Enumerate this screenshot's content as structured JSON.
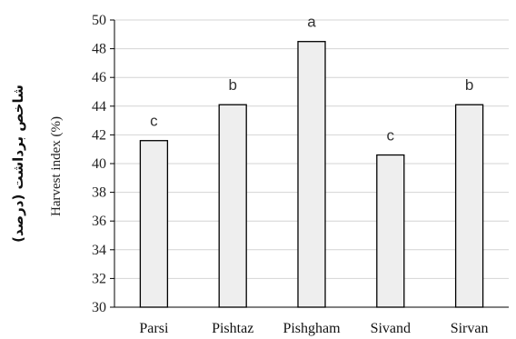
{
  "chart_data": {
    "type": "bar",
    "categories": [
      "Parsi",
      "Pishtaz",
      "Pishgham",
      "Sivand",
      "Sirvan"
    ],
    "values": [
      41.6,
      44.1,
      48.5,
      40.6,
      44.1
    ],
    "significance_letters": [
      "c",
      "b",
      "a",
      "c",
      "b"
    ],
    "ylabel": "Harvest index (%)",
    "ylabel_fa": "شاخص برداشت (درصد)",
    "ylim": [
      30,
      50
    ],
    "yticks": [
      "30",
      "32",
      "34",
      "36",
      "38",
      "40",
      "42",
      "44",
      "46",
      "48",
      "50"
    ],
    "grid": true,
    "legend": "none",
    "colors": {
      "bar_fill": "#eeeeee",
      "bar_stroke": "#000000",
      "grid": "#d4d4d4",
      "axis": "#000000"
    }
  }
}
